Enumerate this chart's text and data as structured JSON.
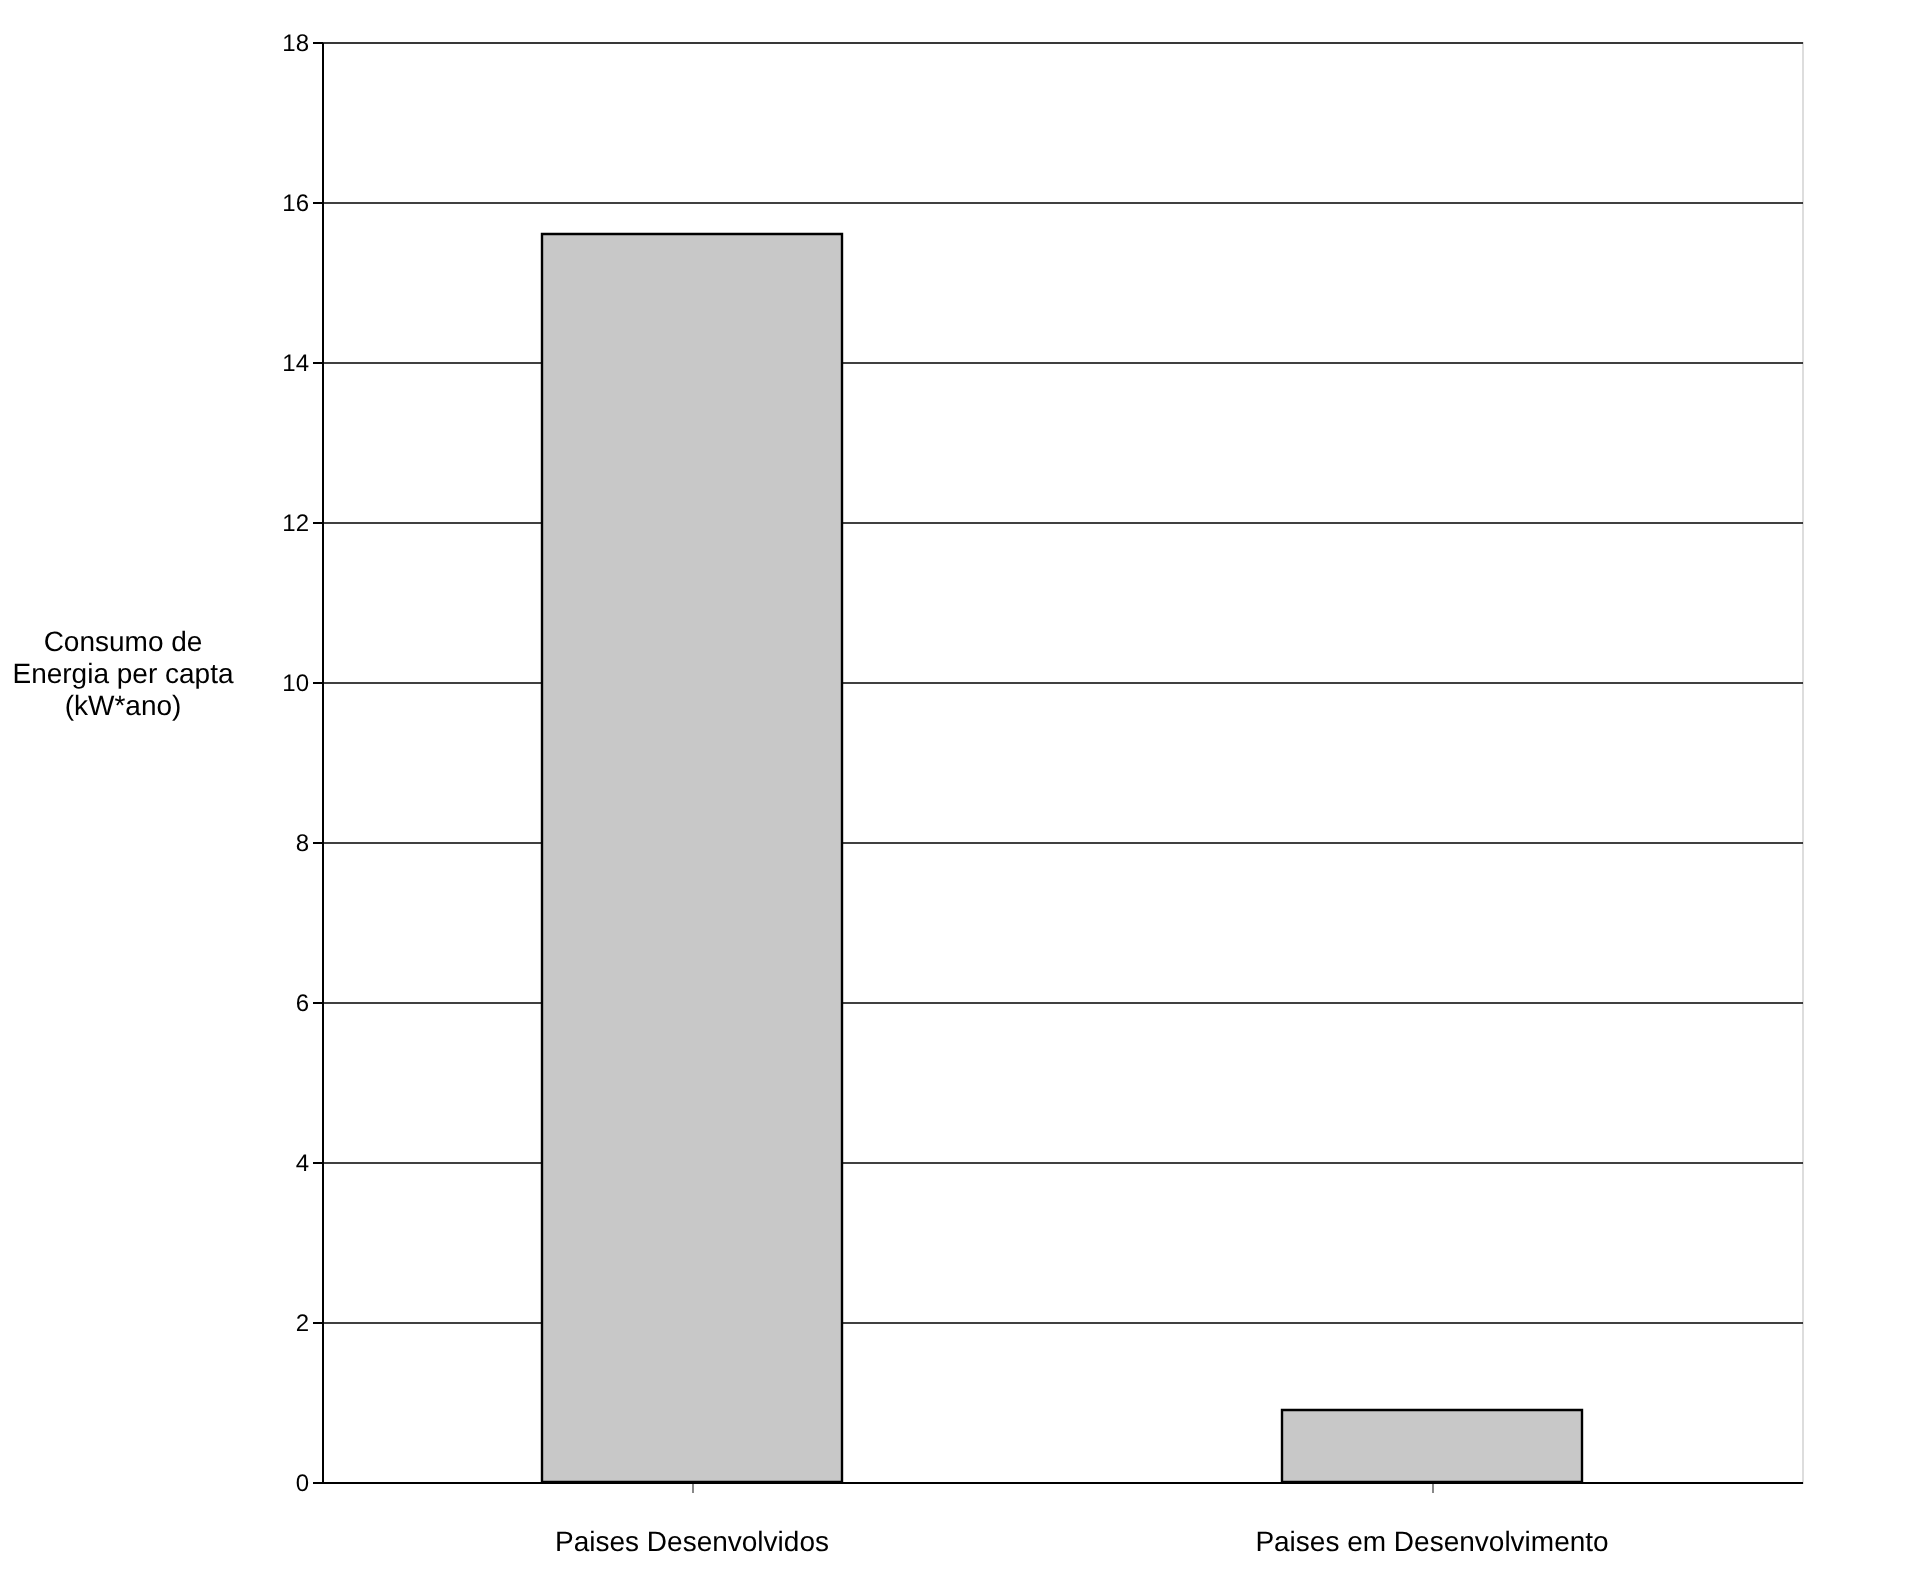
{
  "chart_data": {
    "type": "bar",
    "ylabel": "Consumo de\nEnergia per capta\n(kW*ano)",
    "categories": [
      "Paises Desenvolvidos",
      "Paises em Desenvolvimento"
    ],
    "values": [
      15.6,
      0.9
    ],
    "color": "#c8c8c8",
    "ylim": [
      0,
      18
    ],
    "yticks": [
      0,
      2,
      4,
      6,
      8,
      10,
      12,
      14,
      16,
      18
    ],
    "grid": "y"
  }
}
